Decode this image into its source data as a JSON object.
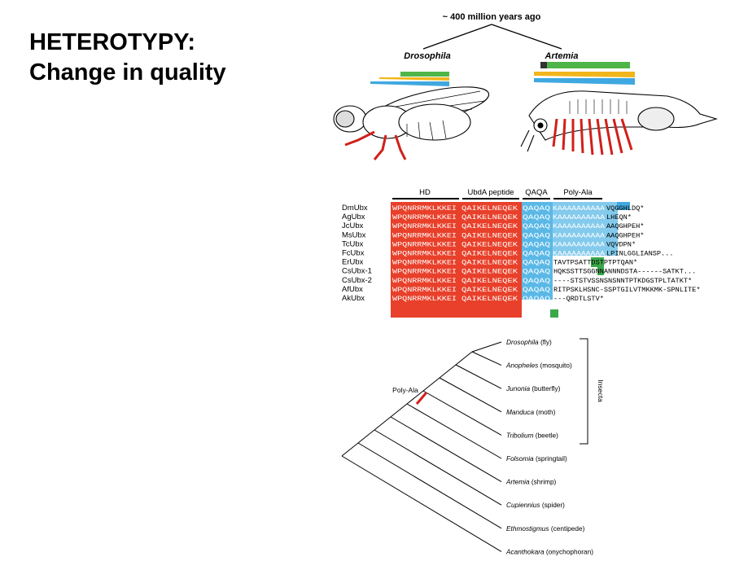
{
  "title": {
    "line1": "HETEROTYPY:",
    "line2": "Change in quality"
  },
  "timeline": {
    "label": "~ 400 million years ago",
    "left_species": "Drosophila",
    "right_species": "Artemia"
  },
  "alignment": {
    "headers": [
      "HD",
      "UbdA peptide",
      "QAQA",
      "Poly-Ala"
    ],
    "rows": [
      {
        "name": "DmUbx",
        "tail": "VQGGHLDQ*"
      },
      {
        "name": "AgUbx",
        "tail": "LHEQN*"
      },
      {
        "name": "JcUbx",
        "tail": "AAQGHPEH*"
      },
      {
        "name": "MsUbx",
        "tail": "AAQGHPEH*"
      },
      {
        "name": "TcUbx",
        "tail": "VQVDPN*"
      },
      {
        "name": "FcUbx",
        "tail": "LPINLGGLIANSP..."
      },
      {
        "name": "ErUbx",
        "tail": "TAVTPSATTDSTPTPTQAN*"
      },
      {
        "name": "CsUbx-1",
        "tail": "HQKSSTTSGGNNANNNDSTA------SATKT..."
      },
      {
        "name": "CsUbx-2",
        "tail": "----STSTVSSNSNSNNTPTKDGSTPLTATKT*"
      },
      {
        "name": "AfUbx",
        "tail": "RITPSKLHSNC-SSPTGILVTMKKMK-SPNLITE*"
      },
      {
        "name": "AkUbx",
        "tail": "---QRDTLSTV*"
      }
    ],
    "seq_hd": "WPQNRRMKLKKEI",
    "seq_ubda": "QAIKELNEQEK",
    "seq_qaqa": "QAQAQ",
    "seq_polyala": "KAAAAAAAAAA"
  },
  "tree": {
    "marker": "Poly-Ala",
    "clade": "Insecta",
    "taxa": [
      {
        "genus": "Drosophila",
        "common": "(fly)"
      },
      {
        "genus": "Anopheles",
        "common": "(mosquito)"
      },
      {
        "genus": "Junonia",
        "common": "(butterfly)"
      },
      {
        "genus": "Manduca",
        "common": "(moth)"
      },
      {
        "genus": "Tribolium",
        "common": "(beetle)"
      },
      {
        "genus": "Folsomia",
        "common": "(springtail)"
      },
      {
        "genus": "Artemia",
        "common": "(shrimp)"
      },
      {
        "genus": "Cupiennius",
        "common": "(spider)"
      },
      {
        "genus": "Ethmostigmus",
        "common": "(centipede)"
      },
      {
        "genus": "Acanthokara",
        "common": "(onychophoran)"
      }
    ]
  },
  "colors": {
    "homeodomain": "#e8402a",
    "qaqa": "#5ab8e6",
    "green_highlight": "#3aa84a",
    "wedge_green": "#4fb548",
    "wedge_yellow": "#f2b61c",
    "wedge_blue": "#3fa8e0",
    "leg_red": "#d0201a"
  }
}
